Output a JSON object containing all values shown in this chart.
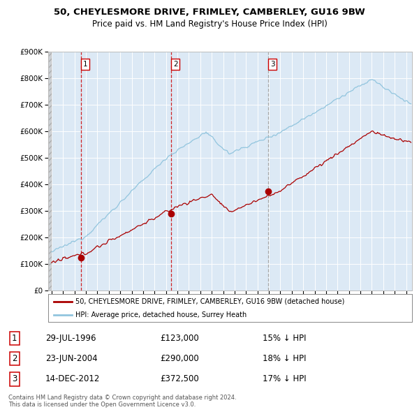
{
  "title": "50, CHEYLESMORE DRIVE, FRIMLEY, CAMBERLEY, GU16 9BW",
  "subtitle": "Price paid vs. HM Land Registry's House Price Index (HPI)",
  "legend_line1": "50, CHEYLESMORE DRIVE, FRIMLEY, CAMBERLEY, GU16 9BW (detached house)",
  "legend_line2": "HPI: Average price, detached house, Surrey Heath",
  "footer1": "Contains HM Land Registry data © Crown copyright and database right 2024.",
  "footer2": "This data is licensed under the Open Government Licence v3.0.",
  "transactions": [
    {
      "num": 1,
      "date": "29-JUL-1996",
      "price": 123000,
      "pct": "15%",
      "direction": "↓",
      "year_x": 1996.57
    },
    {
      "num": 2,
      "date": "23-JUN-2004",
      "price": 290000,
      "pct": "18%",
      "direction": "↓",
      "year_x": 2004.47
    },
    {
      "num": 3,
      "date": "14-DEC-2012",
      "price": 372500,
      "pct": "17%",
      "direction": "↓",
      "year_x": 2012.95
    }
  ],
  "hpi_color": "#92C5DE",
  "price_color": "#AA0000",
  "vline_color_red": "#CC0000",
  "vline_color_gray": "#999999",
  "plot_bg": "#DCE9F5",
  "grid_color": "#FFFFFF",
  "ylim": [
    0,
    900000
  ],
  "yticks": [
    0,
    100000,
    200000,
    300000,
    400000,
    500000,
    600000,
    700000,
    800000,
    900000
  ],
  "xlim_start": 1993.7,
  "xlim_end": 2025.5,
  "xticks": [
    1994,
    1995,
    1996,
    1997,
    1998,
    1999,
    2000,
    2001,
    2002,
    2003,
    2004,
    2005,
    2006,
    2007,
    2008,
    2009,
    2010,
    2011,
    2012,
    2013,
    2014,
    2015,
    2016,
    2017,
    2018,
    2019,
    2020,
    2021,
    2022,
    2023,
    2024,
    2025
  ]
}
